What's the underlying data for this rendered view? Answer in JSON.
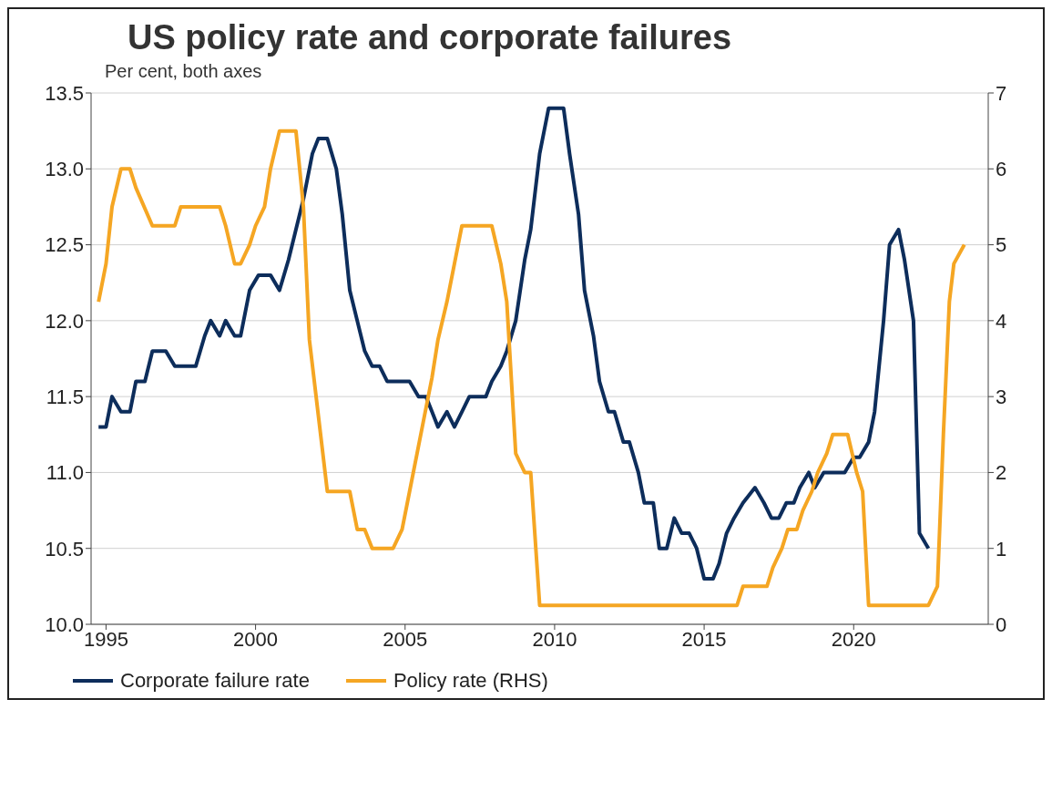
{
  "chart_data": {
    "type": "line",
    "title": "US policy rate and corporate failures",
    "subtitle": "Per cent, both axes",
    "xlim": [
      1994.5,
      2024.5
    ],
    "xticks": [
      1995,
      2000,
      2005,
      2010,
      2015,
      2020
    ],
    "ylim": [
      10,
      13.5
    ],
    "yticks": [
      {
        "value": 10,
        "label": "10.0"
      },
      10.5,
      {
        "value": 11,
        "label": "11.0"
      },
      11.5,
      {
        "value": 12,
        "label": "12.0"
      },
      12.5,
      {
        "value": 13,
        "label": "13.0"
      },
      13.5
    ],
    "y2lim": [
      0,
      7
    ],
    "y2ticks": [
      0,
      1,
      2,
      3,
      4,
      5,
      6,
      7
    ],
    "grid": "y",
    "legend": "bottom",
    "marker": "none",
    "line_style": "solid",
    "series": [
      {
        "name": "Corporate failure rate",
        "color": "#0d2d5b",
        "x": [
          1994.75,
          1995,
          1995.2,
          1995.5,
          1995.8,
          1996,
          1996.3,
          1996.55,
          1997,
          1997.3,
          1998,
          1998.3,
          1998.5,
          1998.8,
          1999,
          1999.3,
          1999.5,
          1999.8,
          2000.1,
          2000.5,
          2000.8,
          2001.1,
          2001.6,
          2001.9,
          2002.1,
          2002.4,
          2002.7,
          2002.9,
          2003.15,
          2003.4,
          2003.65,
          2003.9,
          2004.15,
          2004.4,
          2005.15,
          2005.45,
          2005.7,
          2005.9,
          2006.1,
          2006.4,
          2006.65,
          2006.9,
          2007.15,
          2007.7,
          2007.9,
          2008.2,
          2008.4,
          2008.7,
          2009,
          2009.2,
          2009.5,
          2009.8,
          2010.3,
          2010.5,
          2010.8,
          2011,
          2011.3,
          2011.5,
          2011.8,
          2012,
          2012.3,
          2012.5,
          2012.8,
          2013,
          2013.3,
          2013.5,
          2013.75,
          2014,
          2014.25,
          2014.5,
          2014.75,
          2015,
          2015.3,
          2015.5,
          2015.75,
          2016,
          2016.3,
          2016.7,
          2017,
          2017.25,
          2017.5,
          2017.75,
          2018,
          2018.2,
          2018.5,
          2018.7,
          2019,
          2019.7,
          2020,
          2020.2,
          2020.5,
          2020.7,
          2021,
          2021.2,
          2021.5,
          2021.7,
          2022,
          2022.2,
          2022.5
        ],
        "values": [
          11.3,
          11.3,
          11.5,
          11.4,
          11.4,
          11.6,
          11.6,
          11.8,
          11.8,
          11.7,
          11.7,
          11.9,
          12.0,
          11.9,
          12.0,
          11.9,
          11.9,
          12.2,
          12.3,
          12.3,
          12.2,
          12.4,
          12.8,
          13.1,
          13.2,
          13.2,
          13.0,
          12.7,
          12.2,
          12.0,
          11.8,
          11.7,
          11.7,
          11.6,
          11.6,
          11.5,
          11.5,
          11.4,
          11.3,
          11.4,
          11.3,
          11.4,
          11.5,
          11.5,
          11.6,
          11.7,
          11.8,
          12.0,
          12.4,
          12.6,
          13.1,
          13.4,
          13.4,
          13.1,
          12.7,
          12.2,
          11.9,
          11.6,
          11.4,
          11.4,
          11.2,
          11.2,
          11.0,
          10.8,
          10.8,
          10.5,
          10.5,
          10.7,
          10.6,
          10.6,
          10.5,
          10.3,
          10.3,
          10.4,
          10.6,
          10.7,
          10.8,
          10.9,
          10.8,
          10.7,
          10.7,
          10.8,
          10.8,
          10.9,
          11.0,
          10.9,
          11.0,
          11.0,
          11.1,
          11.1,
          11.2,
          11.4,
          12.0,
          12.5,
          12.6,
          12.4,
          12.0,
          10.6,
          10.5
        ]
      },
      {
        "name": "Policy rate (RHS)",
        "color": "#f5a623",
        "axis": "y2",
        "x": [
          1994.75,
          1995,
          1995.2,
          1995.5,
          1995.8,
          1996,
          1996.55,
          1997.3,
          1997.5,
          1998.8,
          1999,
          1999.3,
          1999.5,
          1999.8,
          2000,
          2000.3,
          2000.5,
          2000.8,
          2001.35,
          2001.6,
          2001.8,
          2002.1,
          2002.4,
          2003.15,
          2003.4,
          2003.65,
          2003.9,
          2004.6,
          2004.9,
          2005.15,
          2005.4,
          2005.65,
          2005.9,
          2006.1,
          2006.4,
          2006.65,
          2006.9,
          2007.9,
          2008.2,
          2008.4,
          2008.7,
          2009,
          2009.2,
          2009.5,
          2016.1,
          2016.3,
          2017.1,
          2017.3,
          2017.6,
          2017.8,
          2018.1,
          2018.3,
          2018.6,
          2018.8,
          2019.1,
          2019.3,
          2019.8,
          2020.1,
          2020.3,
          2020.5,
          2022.5,
          2022.8,
          2023,
          2023.2,
          2023.35,
          2023.7
        ],
        "values": [
          4.25,
          4.75,
          5.5,
          6.0,
          6.0,
          5.75,
          5.25,
          5.25,
          5.5,
          5.5,
          5.25,
          4.75,
          4.75,
          5.0,
          5.25,
          5.5,
          6.0,
          6.5,
          6.5,
          5.5,
          3.75,
          2.75,
          1.75,
          1.75,
          1.25,
          1.25,
          1.0,
          1.0,
          1.25,
          1.75,
          2.25,
          2.75,
          3.25,
          3.75,
          4.25,
          4.75,
          5.25,
          5.25,
          4.75,
          4.25,
          2.25,
          2.0,
          2.0,
          0.25,
          0.25,
          0.5,
          0.5,
          0.75,
          1.0,
          1.25,
          1.25,
          1.5,
          1.75,
          2.0,
          2.25,
          2.5,
          2.5,
          2.0,
          1.75,
          0.25,
          0.25,
          0.5,
          2.5,
          4.25,
          4.75,
          5.0
        ]
      }
    ]
  }
}
